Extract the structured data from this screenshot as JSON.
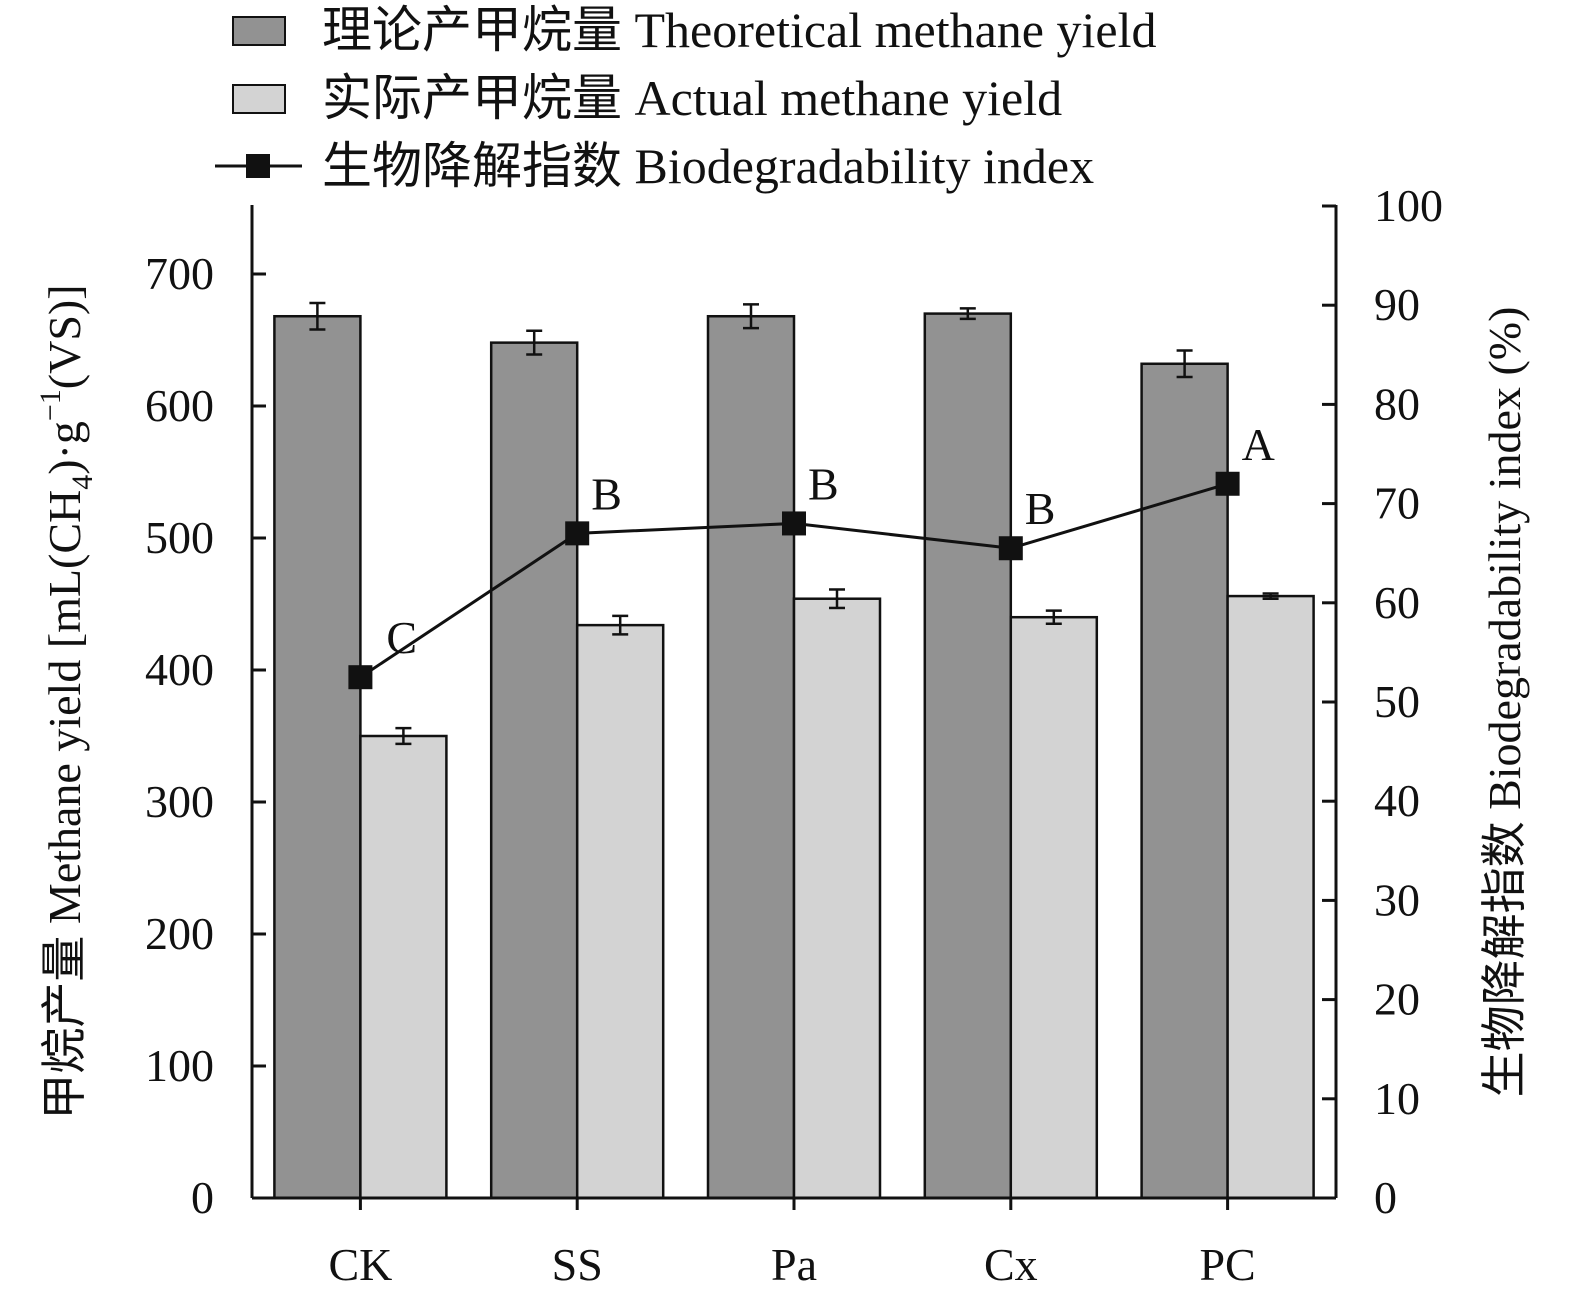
{
  "chart_data": {
    "type": "bar",
    "categories": [
      "CK",
      "SS",
      "Pa",
      "Cx",
      "PC"
    ],
    "series": [
      {
        "name": "理论产甲烷量 Theoretical methane yield",
        "axis": "left",
        "values": [
          668,
          648,
          668,
          670,
          632
        ],
        "errors": [
          10,
          9,
          9,
          4,
          10
        ],
        "color": "#929292"
      },
      {
        "name": "实际产甲烷量 Actual methane yield",
        "axis": "left",
        "values": [
          350,
          434,
          454,
          440,
          456
        ],
        "errors": [
          6,
          7,
          7,
          5,
          2
        ],
        "color": "#d3d3d3"
      },
      {
        "name": "生物降解指数 Biodegradability index",
        "type": "line",
        "axis": "right",
        "values": [
          52.5,
          67,
          68,
          65.5,
          72
        ],
        "labels": [
          "C",
          "B",
          "B",
          "B",
          "A"
        ],
        "color": "#111111"
      }
    ],
    "ylabel": "甲烷产量 Methane yield [mL(CH",
    "ylabel_sub": "4",
    "ylabel_mid": ")·g",
    "ylabel_sup": "−1",
    "ylabel_end": "(VS)]",
    "y2label": "生物降解指数 Biodegradability index (%)",
    "ylim": [
      0,
      750
    ],
    "yticks": [
      0,
      100,
      200,
      300,
      400,
      500,
      600,
      700
    ],
    "y2lim": [
      0,
      100
    ],
    "y2ticks": [
      0,
      10,
      20,
      30,
      40,
      50,
      60,
      70,
      80,
      90,
      100
    ],
    "legend_position": "top",
    "grid": false
  }
}
